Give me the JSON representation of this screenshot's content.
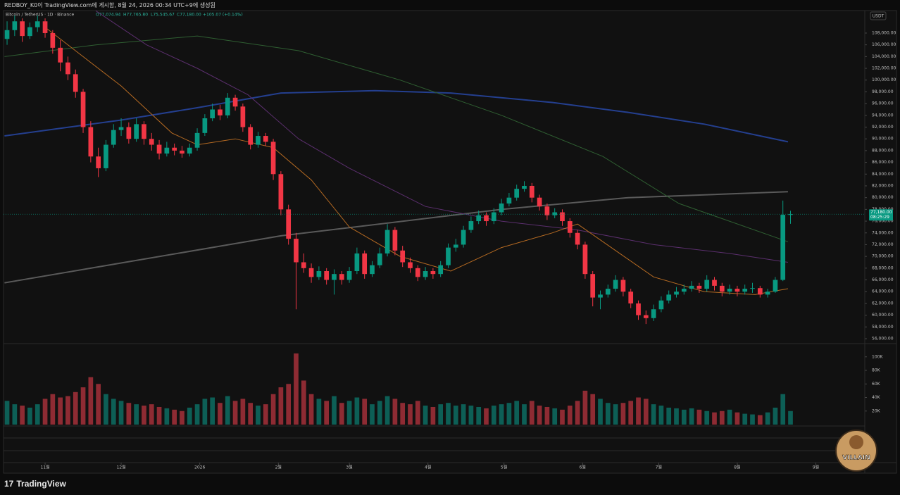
{
  "header": {
    "caption": "REDBOY_K0이 TradingView.com에 게시함, 8월 24, 2026 00:34 UTC+9에 생성됨"
  },
  "legend": {
    "symbol": "Bitcoin / TetherUS · 1D · Binance",
    "open": "O77,074.94",
    "high": "H77,765.80",
    "low": "L75,545.67",
    "close": "C77,180.00",
    "change": "+105.07 (+0.14%)"
  },
  "currency": "USDT",
  "price_tag": {
    "price": "77,180.00",
    "countdown": "08:25:29"
  },
  "badge": "VILLAIN",
  "footer": "TradingView",
  "chart_data": {
    "type": "candlestick",
    "up_color": "#089981",
    "down_color": "#f23645",
    "up_volume_color": "#0d5f56",
    "down_volume_color": "#8e2b33",
    "xlim": [
      -16.4,
      323.3
    ],
    "xticks": [
      {
        "value": 0,
        "label": "11월"
      },
      {
        "value": 30,
        "label": "12월"
      },
      {
        "value": 61,
        "label": "2026"
      },
      {
        "value": 92,
        "label": "2월"
      },
      {
        "value": 120,
        "label": "3월"
      },
      {
        "value": 151,
        "label": "4월"
      },
      {
        "value": 181,
        "label": "5월"
      },
      {
        "value": 212,
        "label": "6월"
      },
      {
        "value": 242,
        "label": "7월"
      },
      {
        "value": 273,
        "label": "8월"
      },
      {
        "value": 304,
        "label": "9월"
      }
    ],
    "ylim": [
      55160,
      111830
    ],
    "yticks": [
      {
        "value": 56000,
        "label": "56,000.00"
      },
      {
        "value": 58000,
        "label": "58,000.00"
      },
      {
        "value": 60000,
        "label": "60,000.00"
      },
      {
        "value": 62000,
        "label": "62,000.00"
      },
      {
        "value": 64000,
        "label": "64,000.00"
      },
      {
        "value": 66000,
        "label": "66,000.00"
      },
      {
        "value": 68000,
        "label": "68,000.00"
      },
      {
        "value": 70000,
        "label": "70,000.00"
      },
      {
        "value": 72000,
        "label": "72,000.00"
      },
      {
        "value": 74000,
        "label": "74,000.00"
      },
      {
        "value": 76000,
        "label": "76,000.00"
      },
      {
        "value": 78000,
        "label": "78,000.00"
      },
      {
        "value": 80000,
        "label": "80,000.00"
      },
      {
        "value": 82000,
        "label": "82,000.00"
      },
      {
        "value": 84000,
        "label": "84,000.00"
      },
      {
        "value": 86000,
        "label": "86,000.00"
      },
      {
        "value": 88000,
        "label": "88,000.00"
      },
      {
        "value": 90000,
        "label": "90,000.00"
      },
      {
        "value": 92000,
        "label": "92,000.00"
      },
      {
        "value": 94000,
        "label": "94,000.00"
      },
      {
        "value": 96000,
        "label": "96,000.00"
      },
      {
        "value": 98000,
        "label": "98,000.00"
      },
      {
        "value": 100000,
        "label": "100,000.00"
      },
      {
        "value": 102000,
        "label": "102,000.00"
      },
      {
        "value": 104000,
        "label": "104,000.00"
      },
      {
        "value": 106000,
        "label": "106,000.00"
      },
      {
        "value": 108000,
        "label": "108,000.00"
      }
    ],
    "volume_ylim": [
      0,
      119500
    ],
    "volume_yticks": [
      {
        "value": 20000,
        "label": "20K"
      },
      {
        "value": 40000,
        "label": "40K"
      },
      {
        "value": 60000,
        "label": "60K"
      },
      {
        "value": 80000,
        "label": "80K"
      },
      {
        "value": 100000,
        "label": "100K"
      }
    ],
    "x": [
      -15,
      -12,
      -9,
      -6,
      -3,
      0,
      3,
      6,
      9,
      12,
      15,
      18,
      21,
      24,
      27,
      30,
      33,
      36,
      39,
      42,
      45,
      48,
      51,
      54,
      57,
      60,
      63,
      66,
      69,
      72,
      75,
      78,
      81,
      84,
      87,
      90,
      93,
      96,
      99,
      102,
      105,
      108,
      111,
      114,
      117,
      120,
      123,
      126,
      129,
      132,
      135,
      138,
      141,
      144,
      147,
      150,
      153,
      156,
      159,
      162,
      165,
      168,
      171,
      174,
      177,
      180,
      183,
      186,
      189,
      192,
      195,
      198,
      201,
      204,
      207,
      210,
      213,
      216,
      219,
      222,
      225,
      228,
      231,
      234,
      237,
      240,
      243,
      246,
      249,
      252,
      255,
      258,
      261,
      264,
      267,
      270,
      273,
      276,
      279,
      282,
      285,
      288,
      291,
      294
    ],
    "candles": [
      [
        107000,
        110000,
        106000,
        108500
      ],
      [
        108500,
        111000,
        107500,
        110000
      ],
      [
        110000,
        110500,
        106500,
        107500
      ],
      [
        107500,
        109800,
        107000,
        109000
      ],
      [
        109000,
        111000,
        108200,
        110000
      ],
      [
        110000,
        110500,
        107200,
        108000
      ],
      [
        108000,
        108500,
        104500,
        105500
      ],
      [
        105500,
        106800,
        101500,
        103000
      ],
      [
        103000,
        104000,
        100000,
        101000
      ],
      [
        101000,
        101800,
        97000,
        98000
      ],
      [
        98000,
        98500,
        91000,
        92000
      ],
      [
        92000,
        93000,
        86000,
        87000
      ],
      [
        87000,
        88500,
        83500,
        85000
      ],
      [
        85000,
        89800,
        84500,
        89000
      ],
      [
        89000,
        92500,
        88500,
        91500
      ],
      [
        91500,
        93500,
        90500,
        92000
      ],
      [
        92000,
        92800,
        89200,
        90000
      ],
      [
        90000,
        93500,
        89500,
        92500
      ],
      [
        92500,
        93000,
        89000,
        90000
      ],
      [
        90000,
        91000,
        88000,
        89000
      ],
      [
        89000,
        89800,
        86500,
        87500
      ],
      [
        87500,
        89500,
        87000,
        88500
      ],
      [
        88500,
        89200,
        87200,
        88000
      ],
      [
        88000,
        88800,
        86800,
        87500
      ],
      [
        87500,
        89200,
        87000,
        88500
      ],
      [
        88500,
        91800,
        88000,
        91000
      ],
      [
        91000,
        94200,
        90500,
        93500
      ],
      [
        93500,
        96000,
        93000,
        95000
      ],
      [
        95000,
        95800,
        93200,
        94000
      ],
      [
        94000,
        97800,
        93500,
        97000
      ],
      [
        97000,
        97500,
        94800,
        95500
      ],
      [
        95500,
        96000,
        91200,
        92000
      ],
      [
        92000,
        92500,
        88200,
        89000
      ],
      [
        89000,
        91200,
        88500,
        90500
      ],
      [
        90500,
        91000,
        88800,
        89500
      ],
      [
        89500,
        90000,
        83000,
        84000
      ],
      [
        84000,
        84500,
        77000,
        78000
      ],
      [
        78000,
        78800,
        72000,
        73000
      ],
      [
        73000,
        74000,
        61000,
        69000
      ],
      [
        69000,
        70500,
        67200,
        68000
      ],
      [
        68000,
        68800,
        65500,
        66500
      ],
      [
        66500,
        68300,
        66000,
        67500
      ],
      [
        67500,
        68000,
        65200,
        66000
      ],
      [
        66000,
        67800,
        63500,
        67000
      ],
      [
        67000,
        67500,
        65200,
        66000
      ],
      [
        66000,
        68200,
        65500,
        67500
      ],
      [
        67500,
        71500,
        67000,
        70500
      ],
      [
        70500,
        71000,
        66200,
        67000
      ],
      [
        67000,
        69200,
        66500,
        68500
      ],
      [
        68500,
        71500,
        68000,
        70500
      ],
      [
        70500,
        75500,
        70000,
        74500
      ],
      [
        74500,
        75000,
        70200,
        71000
      ],
      [
        71000,
        71800,
        68200,
        69000
      ],
      [
        69000,
        69800,
        67200,
        68000
      ],
      [
        68000,
        68500,
        65800,
        66500
      ],
      [
        66500,
        68200,
        66000,
        67500
      ],
      [
        67500,
        68000,
        66200,
        67000
      ],
      [
        67000,
        69200,
        66500,
        68500
      ],
      [
        68500,
        72200,
        68000,
        71500
      ],
      [
        71500,
        73000,
        70800,
        72000
      ],
      [
        72000,
        75200,
        71500,
        74500
      ],
      [
        74500,
        76800,
        74000,
        76000
      ],
      [
        76000,
        77800,
        75500,
        77000
      ],
      [
        77000,
        77500,
        75200,
        76000
      ],
      [
        76000,
        78200,
        75500,
        77500
      ],
      [
        77500,
        79800,
        77000,
        79000
      ],
      [
        79000,
        80800,
        78500,
        80000
      ],
      [
        80000,
        82200,
        79500,
        81500
      ],
      [
        81500,
        82800,
        81000,
        82000
      ],
      [
        82000,
        82500,
        79200,
        80000
      ],
      [
        80000,
        80500,
        77800,
        78500
      ],
      [
        78500,
        79000,
        76200,
        77000
      ],
      [
        77000,
        78200,
        76500,
        77500
      ],
      [
        77500,
        78000,
        75200,
        76000
      ],
      [
        76000,
        76500,
        73200,
        74000
      ],
      [
        74000,
        74500,
        71200,
        72000
      ],
      [
        72000,
        72500,
        66200,
        67000
      ],
      [
        67000,
        67500,
        61500,
        63000
      ],
      [
        63000,
        64200,
        61000,
        63500
      ],
      [
        63500,
        65200,
        63000,
        64500
      ],
      [
        64500,
        66800,
        64000,
        66000
      ],
      [
        66000,
        66500,
        63200,
        64000
      ],
      [
        64000,
        64500,
        61200,
        62000
      ],
      [
        62000,
        62500,
        59200,
        60000
      ],
      [
        60000,
        60800,
        58500,
        59500
      ],
      [
        59500,
        61800,
        59000,
        61000
      ],
      [
        61000,
        63200,
        60500,
        62500
      ],
      [
        62500,
        64200,
        62000,
        63500
      ],
      [
        63500,
        64800,
        63000,
        64000
      ],
      [
        64000,
        65200,
        63500,
        64500
      ],
      [
        64500,
        65800,
        64000,
        65000
      ],
      [
        65000,
        65500,
        63800,
        64500
      ],
      [
        64500,
        66800,
        64000,
        66000
      ],
      [
        66000,
        66500,
        64200,
        65000
      ],
      [
        65000,
        65500,
        63200,
        64000
      ],
      [
        64000,
        65200,
        63500,
        64500
      ],
      [
        64500,
        65000,
        63200,
        64000
      ],
      [
        64000,
        65200,
        63500,
        64500
      ],
      [
        64500,
        65500,
        63800,
        64600
      ],
      [
        64600,
        65000,
        63000,
        63500
      ],
      [
        63500,
        64500,
        63000,
        64000
      ],
      [
        64000,
        66500,
        63800,
        66000
      ],
      [
        66000,
        79500,
        65800,
        77074.94
      ],
      [
        77074.94,
        77765.8,
        75545.67,
        77180
      ]
    ],
    "volume": [
      35000,
      30000,
      28000,
      25000,
      30000,
      38000,
      45000,
      40000,
      42000,
      48000,
      55000,
      70000,
      60000,
      45000,
      38000,
      35000,
      32000,
      30000,
      28000,
      30000,
      26000,
      24000,
      22000,
      20000,
      25000,
      30000,
      38000,
      40000,
      32000,
      42000,
      35000,
      38000,
      32000,
      28000,
      30000,
      45000,
      55000,
      60000,
      105000,
      65000,
      45000,
      38000,
      35000,
      42000,
      32000,
      35000,
      40000,
      38000,
      30000,
      35000,
      42000,
      38000,
      32000,
      30000,
      35000,
      28000,
      26000,
      30000,
      32000,
      28000,
      30000,
      28000,
      26000,
      24000,
      28000,
      30000,
      32000,
      35000,
      30000,
      35000,
      28000,
      26000,
      24000,
      22000,
      28000,
      35000,
      50000,
      45000,
      38000,
      32000,
      30000,
      32000,
      35000,
      40000,
      38000,
      30000,
      28000,
      25000,
      24000,
      22000,
      24000,
      22000,
      20000,
      18000,
      20000,
      22000,
      18000,
      16000,
      15000,
      14000,
      18000,
      25000,
      45000,
      20000
    ],
    "series": [
      {
        "color": "#243f8f",
        "width": 2,
        "x": [
          -16,
          30,
          60,
          93,
          130,
          160,
          200,
          230,
          260,
          293
        ],
        "values": [
          90500,
          93200,
          95300,
          97800,
          98200,
          97800,
          96200,
          94500,
          92500,
          89500
        ]
      },
      {
        "color": "#5a5a5a",
        "width": 2,
        "x": [
          -16,
          93,
          180,
          230,
          293
        ],
        "values": [
          65500,
          73500,
          78000,
          80000,
          81000
        ]
      },
      {
        "color": "#2f5f32",
        "width": 1,
        "x": [
          -16,
          20,
          60,
          100,
          140,
          180,
          220,
          250,
          293
        ],
        "values": [
          104000,
          106000,
          107500,
          105000,
          100000,
          94000,
          87000,
          79000,
          72500
        ]
      },
      {
        "color": "#5b2f6e",
        "width": 1,
        "x": [
          20,
          40,
          60,
          80,
          100,
          120,
          150,
          180,
          210,
          240,
          270,
          293
        ],
        "values": [
          111800,
          106000,
          102000,
          97500,
          90000,
          85000,
          78500,
          76000,
          74500,
          72000,
          70500,
          69000
        ]
      },
      {
        "color": "#b56a22",
        "width": 1,
        "x": [
          0,
          15,
          30,
          50,
          60,
          75,
          90,
          105,
          120,
          140,
          160,
          180,
          200,
          210,
          225,
          240,
          260,
          280,
          293
        ],
        "values": [
          109000,
          104000,
          99000,
          91000,
          89000,
          90000,
          88500,
          83000,
          75000,
          70000,
          67500,
          71500,
          74000,
          75500,
          71000,
          66500,
          64000,
          63500,
          64500
        ]
      }
    ]
  }
}
